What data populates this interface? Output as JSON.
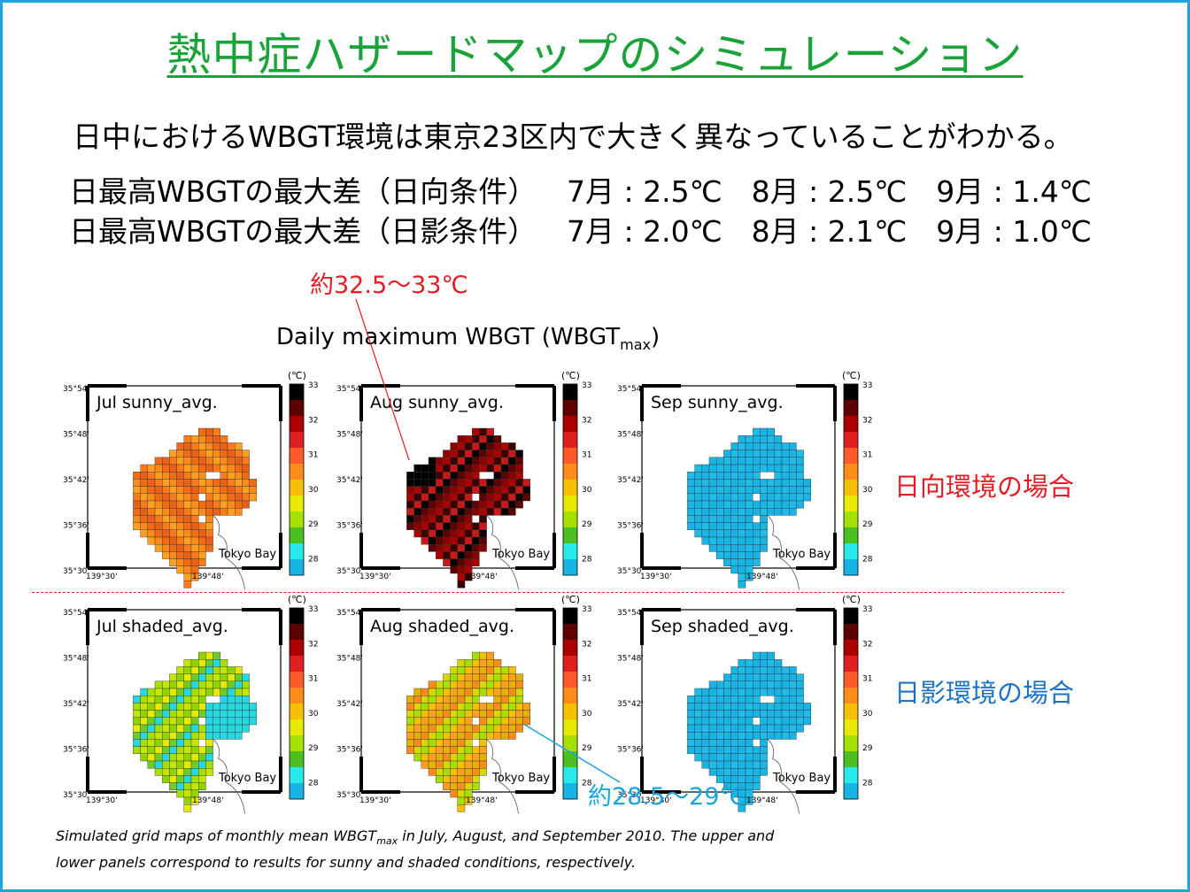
{
  "title": "熱中症ハザードマップのシミュレーション",
  "summary": "日中におけるWBGT環境は東京23区内で大きく異なっていることがわかる。",
  "diff_lines": [
    {
      "label": "日最高WBGTの最大差（日向条件）",
      "values": "7月 : 2.5℃　8月 : 2.5℃　9月 : 1.4℃"
    },
    {
      "label": "日最高WBGTの最大差（日影条件）",
      "values": "7月 : 2.0℃　8月 : 2.1℃　9月 : 1.0℃"
    }
  ],
  "callouts": {
    "hot": "約32.5～33℃",
    "cool": "約28.5～29℃"
  },
  "figure": {
    "title_main": "Daily maximum WBGT (WBGT",
    "title_sub": "max",
    "title_end": ")",
    "unit_label": "(℃)",
    "legend_ticks": [
      "33",
      "32",
      "31",
      "30",
      "29",
      "28"
    ],
    "legend_colors": [
      "#000000",
      "#5c0000",
      "#aa0000",
      "#e02020",
      "#ff5a2a",
      "#ff8c1a",
      "#f5c000",
      "#e6ea00",
      "#a6e000",
      "#4cc020",
      "#28e8e8",
      "#18b4e6"
    ],
    "lat_ticks": [
      "35°54'",
      "35°48'",
      "35°42'",
      "35°36'",
      "35°30'"
    ],
    "lon_ticks": [
      "139°30'",
      "139°48'"
    ],
    "bay_label": "Tokyo Bay",
    "panels": [
      {
        "label": "Jul sunny_avg.",
        "scheme": "orange"
      },
      {
        "label": "Aug sunny_avg.",
        "scheme": "dark"
      },
      {
        "label": "Sep sunny_avg.",
        "scheme": "cyan"
      },
      {
        "label": "Jul shaded_avg.",
        "scheme": "green"
      },
      {
        "label": "Aug shaded_avg.",
        "scheme": "yellow"
      },
      {
        "label": "Sep shaded_avg.",
        "scheme": "cyan"
      }
    ]
  },
  "row_labels": {
    "sunny": "日向環境の場合",
    "shaded": "日影環境の場合"
  },
  "colors": {
    "title": "#1aa338",
    "border": "#19a5de",
    "hot": "#e51c23",
    "cool": "#19a5de"
  },
  "caption": {
    "line1_a": "Simulated grid maps of monthly mean WBGT",
    "line1_sub": "max",
    "line1_b": " in July, August, and September 2010. The upper and",
    "line2": "lower panels correspond to results for sunny and shaded conditions, respectively."
  }
}
